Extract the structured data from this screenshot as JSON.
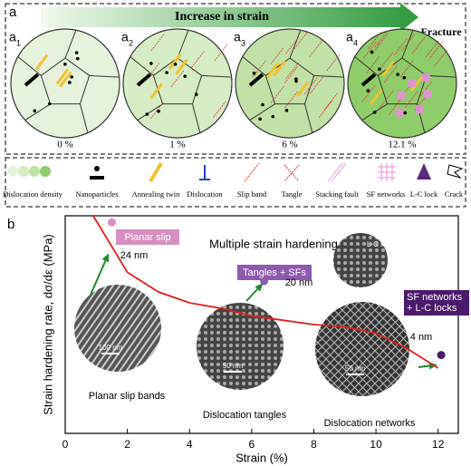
{
  "panel_a": {
    "label": "a",
    "arrow_text": "Increase in strain",
    "end_text": "Fracture",
    "stages": [
      {
        "label": "a",
        "subscript": "1",
        "strain": "0 %"
      },
      {
        "label": "a",
        "subscript": "2",
        "strain": "1 %"
      },
      {
        "label": "a",
        "subscript": "3",
        "strain": "6 %"
      },
      {
        "label": "a",
        "subscript": "4",
        "strain": "12.1 %"
      }
    ],
    "legend": [
      "Dislocation density",
      "Nanoparticles",
      "Annealing twin",
      "Dislocation",
      "Slip band",
      "Tangle",
      "Stacking fault",
      "SF networks",
      "L-C lock",
      "Crack"
    ]
  },
  "chart_data": {
    "type": "line",
    "panel_label": "b",
    "title": "Multiple strain hardening",
    "x_label": "Strain (%)",
    "y_label": "Strain hardening rate, dσ/dε (MPa)",
    "xlim": [
      0,
      12.65
    ],
    "xticks": [
      0,
      2,
      4,
      6,
      8,
      10,
      12
    ],
    "ylim": [
      0,
      100
    ],
    "color": "#e0201b",
    "x": [
      0.9,
      2,
      3,
      4,
      5,
      6,
      7,
      8,
      9,
      10,
      11,
      12
    ],
    "values": [
      100,
      74,
      65,
      60,
      57.5,
      54,
      52,
      50,
      49,
      46,
      39,
      30
    ],
    "annotations": [
      {
        "text": "Planar slip",
        "size": "24 nm",
        "x": 1.5,
        "y": 97,
        "color": "#d48fc0"
      },
      {
        "text": "Tangles + SFs",
        "size": "20 nm",
        "x": 6.4,
        "y": 70,
        "color": "#8e5aad"
      },
      {
        "text": "SF networks + L-C locks",
        "size": "4 nm",
        "x": 12.1,
        "y": 36,
        "color": "#4a1a6b"
      }
    ],
    "insets": [
      {
        "caption": "Planar slip bands",
        "scale": "100 nm"
      },
      {
        "caption": "Dislocation tangles",
        "scale": "50 nm"
      },
      {
        "caption": "Dislocation networks",
        "scale": "50 nm"
      }
    ],
    "tem_label": "L-C locks"
  }
}
